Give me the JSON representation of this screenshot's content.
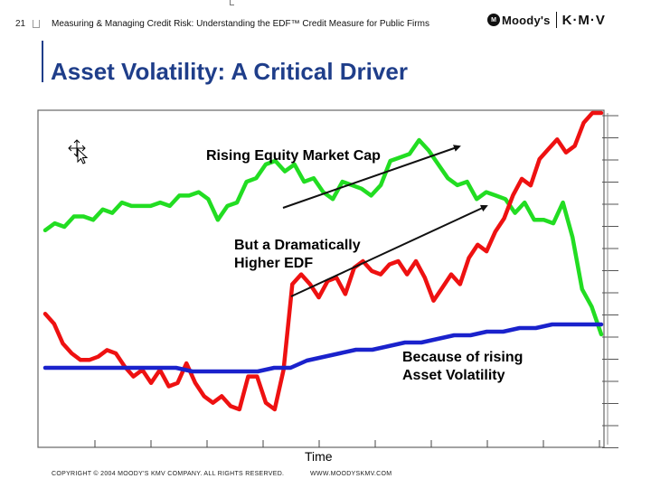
{
  "header": {
    "slide_number": "21",
    "title": "Measuring & Managing Credit Risk: Understanding the EDF™ Credit Measure for Public Firms",
    "logo_text": "Moody's",
    "logo_kmv": "K·M·V",
    "logo_seal": "M"
  },
  "slide": {
    "title": "Asset Volatility: A Critical Driver"
  },
  "chart_data": {
    "type": "line",
    "xlabel": "Time",
    "series": [
      {
        "color": "#22dd22",
        "values": [
          52,
          54,
          53,
          56,
          56,
          55,
          58,
          57,
          60,
          59,
          59,
          59,
          60,
          59,
          62,
          62,
          63,
          61,
          55,
          59,
          60,
          66,
          67,
          71,
          72,
          69,
          71,
          66,
          67,
          63,
          61,
          66,
          65,
          64,
          62,
          65,
          72,
          73,
          74,
          78,
          75,
          71,
          67,
          65,
          66,
          61,
          63,
          62,
          61,
          57,
          60,
          55,
          55,
          54,
          60,
          50,
          35,
          30,
          22
        ]
      },
      {
        "color": "#ee1111",
        "values": [
          29,
          26,
          20,
          17,
          15,
          15,
          16,
          18,
          17,
          13,
          10,
          12,
          8,
          12,
          7,
          8,
          14,
          8,
          4,
          2,
          4,
          1,
          0,
          10,
          10,
          2,
          0,
          12,
          38,
          41,
          38,
          34,
          39,
          40,
          35,
          43,
          45,
          42,
          41,
          44,
          45,
          41,
          45,
          40,
          33,
          37,
          41,
          38,
          46,
          50,
          48,
          54,
          58,
          65,
          70,
          68,
          76,
          79,
          82,
          78,
          80,
          87,
          90,
          90
        ]
      },
      {
        "color": "#1a22cc",
        "values": [
          10,
          10,
          10,
          10,
          10,
          10,
          10,
          10,
          10,
          9,
          9,
          9,
          9,
          9,
          10,
          10,
          12,
          13,
          14,
          15,
          15,
          16,
          17,
          17,
          18,
          19,
          19,
          20,
          20,
          21,
          21,
          22,
          22,
          22,
          22
        ]
      }
    ],
    "annotations": [
      "Rising Equity Market Cap",
      "But a Dramatically Higher EDF",
      "Because of rising Asset Volatility"
    ]
  },
  "callouts": {
    "rising_equity": "Rising Equity Market Cap",
    "higher_edf_line1": "But a Dramatically",
    "higher_edf_line2": "Higher EDF",
    "asset_vol_line1": "Because of rising",
    "asset_vol_line2": "Asset Volatility"
  },
  "footer": {
    "copyright": "COPYRIGHT © 2004 MOODY'S KMV COMPANY. ALL RIGHTS RESERVED.",
    "website": "WWW.MOODYSKMV.COM"
  }
}
